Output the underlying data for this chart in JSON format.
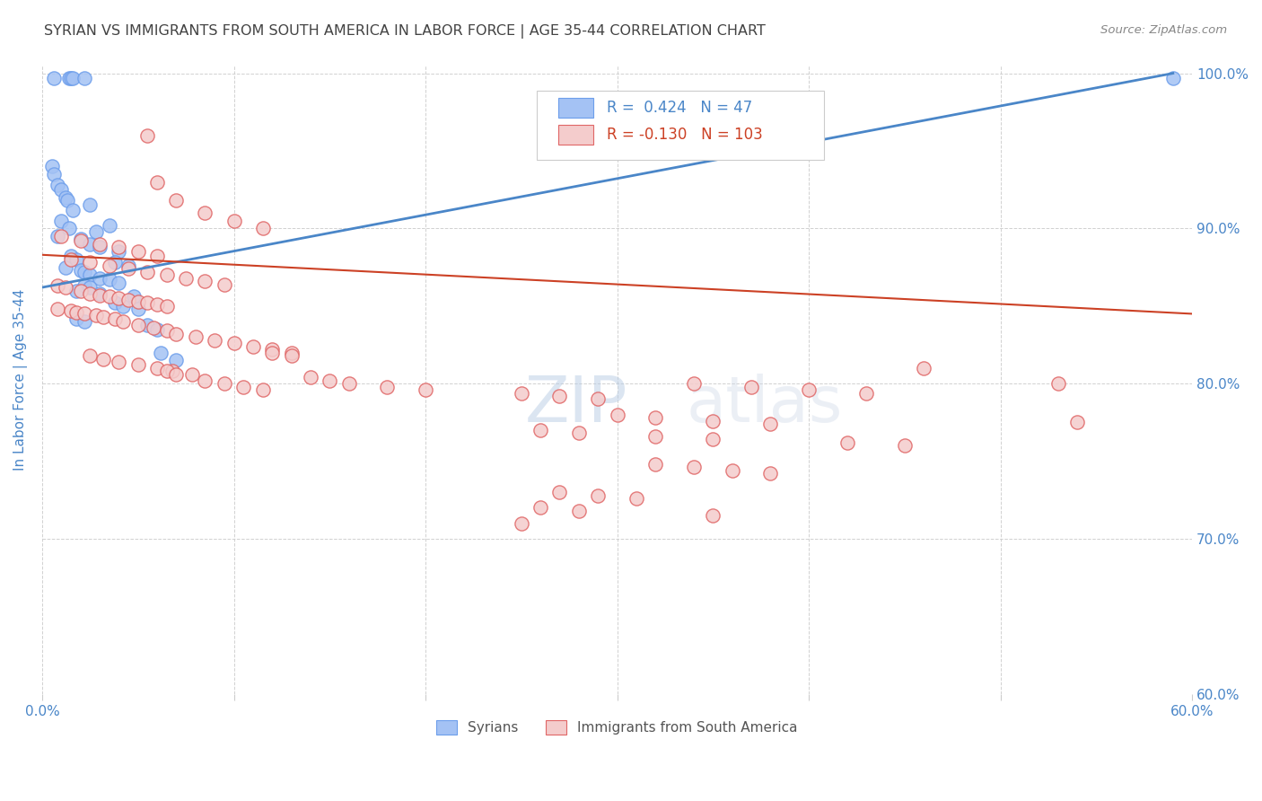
{
  "title": "SYRIAN VS IMMIGRANTS FROM SOUTH AMERICA IN LABOR FORCE | AGE 35-44 CORRELATION CHART",
  "source": "Source: ZipAtlas.com",
  "ylabel": "In Labor Force | Age 35-44",
  "xlim": [
    0.0,
    0.6
  ],
  "ylim": [
    0.6,
    1.005
  ],
  "xticks": [
    0.0,
    0.1,
    0.2,
    0.3,
    0.4,
    0.5,
    0.6
  ],
  "xticklabels": [
    "0.0%",
    "",
    "",
    "",
    "",
    "",
    "60.0%"
  ],
  "yticks": [
    0.6,
    0.7,
    0.8,
    0.9,
    1.0
  ],
  "yticklabels": [
    "60.0%",
    "70.0%",
    "80.0%",
    "90.0%",
    "100.0%"
  ],
  "blue_color": "#a4c2f4",
  "pink_color": "#f4cccc",
  "blue_edge_color": "#6d9eeb",
  "pink_edge_color": "#e06666",
  "blue_line_color": "#4a86c8",
  "pink_line_color": "#cc4125",
  "legend_R_blue": "0.424",
  "legend_N_blue": "47",
  "legend_R_pink": "-0.130",
  "legend_N_pink": "103",
  "title_color": "#434343",
  "axis_color": "#4a86c8",
  "watermark": "ZIPatlas",
  "blue_scatter": [
    [
      0.006,
      0.997
    ],
    [
      0.014,
      0.997
    ],
    [
      0.015,
      0.997
    ],
    [
      0.016,
      0.997
    ],
    [
      0.022,
      0.997
    ],
    [
      0.005,
      0.94
    ],
    [
      0.006,
      0.935
    ],
    [
      0.008,
      0.928
    ],
    [
      0.01,
      0.925
    ],
    [
      0.012,
      0.92
    ],
    [
      0.013,
      0.918
    ],
    [
      0.025,
      0.915
    ],
    [
      0.016,
      0.912
    ],
    [
      0.01,
      0.905
    ],
    [
      0.035,
      0.902
    ],
    [
      0.014,
      0.9
    ],
    [
      0.028,
      0.898
    ],
    [
      0.008,
      0.895
    ],
    [
      0.02,
      0.893
    ],
    [
      0.025,
      0.89
    ],
    [
      0.03,
      0.888
    ],
    [
      0.04,
      0.885
    ],
    [
      0.015,
      0.882
    ],
    [
      0.018,
      0.88
    ],
    [
      0.038,
      0.878
    ],
    [
      0.045,
      0.876
    ],
    [
      0.012,
      0.875
    ],
    [
      0.02,
      0.873
    ],
    [
      0.022,
      0.872
    ],
    [
      0.025,
      0.87
    ],
    [
      0.03,
      0.868
    ],
    [
      0.035,
      0.867
    ],
    [
      0.04,
      0.865
    ],
    [
      0.022,
      0.863
    ],
    [
      0.025,
      0.862
    ],
    [
      0.018,
      0.86
    ],
    [
      0.03,
      0.858
    ],
    [
      0.048,
      0.856
    ],
    [
      0.038,
      0.852
    ],
    [
      0.042,
      0.85
    ],
    [
      0.05,
      0.848
    ],
    [
      0.018,
      0.842
    ],
    [
      0.022,
      0.84
    ],
    [
      0.055,
      0.838
    ],
    [
      0.06,
      0.835
    ],
    [
      0.062,
      0.82
    ],
    [
      0.07,
      0.815
    ],
    [
      0.59,
      0.997
    ]
  ],
  "pink_scatter": [
    [
      0.055,
      0.96
    ],
    [
      0.06,
      0.93
    ],
    [
      0.07,
      0.918
    ],
    [
      0.085,
      0.91
    ],
    [
      0.1,
      0.905
    ],
    [
      0.115,
      0.9
    ],
    [
      0.01,
      0.895
    ],
    [
      0.02,
      0.892
    ],
    [
      0.03,
      0.89
    ],
    [
      0.04,
      0.888
    ],
    [
      0.05,
      0.885
    ],
    [
      0.06,
      0.882
    ],
    [
      0.015,
      0.88
    ],
    [
      0.025,
      0.878
    ],
    [
      0.035,
      0.876
    ],
    [
      0.045,
      0.874
    ],
    [
      0.055,
      0.872
    ],
    [
      0.065,
      0.87
    ],
    [
      0.075,
      0.868
    ],
    [
      0.085,
      0.866
    ],
    [
      0.095,
      0.864
    ],
    [
      0.008,
      0.863
    ],
    [
      0.012,
      0.862
    ],
    [
      0.02,
      0.86
    ],
    [
      0.025,
      0.858
    ],
    [
      0.03,
      0.857
    ],
    [
      0.035,
      0.856
    ],
    [
      0.04,
      0.855
    ],
    [
      0.045,
      0.854
    ],
    [
      0.05,
      0.853
    ],
    [
      0.055,
      0.852
    ],
    [
      0.06,
      0.851
    ],
    [
      0.065,
      0.85
    ],
    [
      0.008,
      0.848
    ],
    [
      0.015,
      0.847
    ],
    [
      0.018,
      0.846
    ],
    [
      0.022,
      0.845
    ],
    [
      0.028,
      0.844
    ],
    [
      0.032,
      0.843
    ],
    [
      0.038,
      0.842
    ],
    [
      0.042,
      0.84
    ],
    [
      0.05,
      0.838
    ],
    [
      0.058,
      0.836
    ],
    [
      0.065,
      0.834
    ],
    [
      0.07,
      0.832
    ],
    [
      0.08,
      0.83
    ],
    [
      0.09,
      0.828
    ],
    [
      0.1,
      0.826
    ],
    [
      0.11,
      0.824
    ],
    [
      0.12,
      0.822
    ],
    [
      0.13,
      0.82
    ],
    [
      0.025,
      0.818
    ],
    [
      0.032,
      0.816
    ],
    [
      0.04,
      0.814
    ],
    [
      0.05,
      0.812
    ],
    [
      0.06,
      0.81
    ],
    [
      0.068,
      0.808
    ],
    [
      0.078,
      0.806
    ],
    [
      0.14,
      0.804
    ],
    [
      0.15,
      0.802
    ],
    [
      0.16,
      0.8
    ],
    [
      0.18,
      0.798
    ],
    [
      0.2,
      0.796
    ],
    [
      0.12,
      0.82
    ],
    [
      0.13,
      0.818
    ],
    [
      0.065,
      0.808
    ],
    [
      0.07,
      0.806
    ],
    [
      0.085,
      0.802
    ],
    [
      0.095,
      0.8
    ],
    [
      0.105,
      0.798
    ],
    [
      0.115,
      0.796
    ],
    [
      0.25,
      0.794
    ],
    [
      0.27,
      0.792
    ],
    [
      0.29,
      0.79
    ],
    [
      0.34,
      0.8
    ],
    [
      0.37,
      0.798
    ],
    [
      0.4,
      0.796
    ],
    [
      0.43,
      0.794
    ],
    [
      0.46,
      0.81
    ],
    [
      0.3,
      0.78
    ],
    [
      0.32,
      0.778
    ],
    [
      0.35,
      0.776
    ],
    [
      0.38,
      0.774
    ],
    [
      0.53,
      0.8
    ],
    [
      0.26,
      0.77
    ],
    [
      0.28,
      0.768
    ],
    [
      0.32,
      0.766
    ],
    [
      0.35,
      0.764
    ],
    [
      0.42,
      0.762
    ],
    [
      0.45,
      0.76
    ],
    [
      0.32,
      0.748
    ],
    [
      0.34,
      0.746
    ],
    [
      0.36,
      0.744
    ],
    [
      0.38,
      0.742
    ],
    [
      0.27,
      0.73
    ],
    [
      0.29,
      0.728
    ],
    [
      0.31,
      0.726
    ],
    [
      0.26,
      0.72
    ],
    [
      0.28,
      0.718
    ],
    [
      0.35,
      0.715
    ],
    [
      0.54,
      0.775
    ],
    [
      0.25,
      0.71
    ]
  ],
  "blue_trend_x": [
    0.0,
    0.59
  ],
  "blue_trend_y": [
    0.862,
    1.0
  ],
  "pink_trend_x": [
    0.0,
    0.6
  ],
  "pink_trend_y": [
    0.883,
    0.845
  ]
}
